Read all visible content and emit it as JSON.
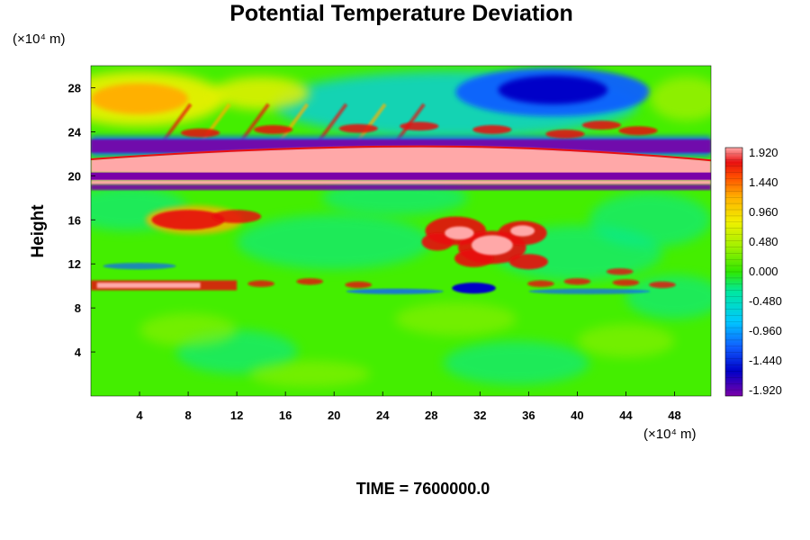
{
  "chart_data": {
    "type": "heatmap",
    "title": "Potential Temperature Deviation",
    "ylabel": "Height",
    "x_unit": "(×10⁴ m)",
    "y_unit": "(×10⁴ m)",
    "x_ticks": [
      "4",
      "8",
      "12",
      "16",
      "20",
      "24",
      "28",
      "32",
      "36",
      "40",
      "44",
      "48"
    ],
    "y_ticks": [
      "4",
      "8",
      "12",
      "16",
      "20",
      "24",
      "28"
    ],
    "xlim": [
      0,
      51
    ],
    "ylim": [
      0,
      30
    ],
    "colorbar": {
      "labels": [
        "1.920",
        "1.440",
        "0.960",
        "0.480",
        "0.000",
        "-0.480",
        "-0.960",
        "-1.440",
        "-1.920"
      ],
      "range": [
        -1.92,
        1.92
      ]
    },
    "colors": {
      "background": "#44ee00",
      "colormap": [
        "#7a00a8",
        "#0000c8",
        "#1060ff",
        "#00c8ff",
        "#00e8a0",
        "#30e800",
        "#a0f000",
        "#f0f000",
        "#ffb000",
        "#ff5000",
        "#e81010",
        "#ffa8a8"
      ]
    },
    "features": [
      {
        "name": "pink band",
        "y": 20.8,
        "value": 1.92
      },
      {
        "name": "purple band",
        "y": 20.0,
        "value": -1.92
      },
      {
        "name": "purple band upper",
        "y": 22.5,
        "value": -1.92
      },
      {
        "name": "blue cold region",
        "x": 38,
        "y": 27.8,
        "value": -1.6
      },
      {
        "name": "warm region",
        "x": 4,
        "y": 27,
        "value": 0.96
      },
      {
        "name": "warm blob",
        "x": 8,
        "y": 16,
        "value": 1.44
      },
      {
        "name": "warm blob center",
        "x": 33,
        "y": 14,
        "value": 1.92
      },
      {
        "name": "warm band",
        "x": 10,
        "y": 10,
        "value": 1.44
      }
    ]
  },
  "footer": {
    "time": "TIME = 7600000.0"
  }
}
